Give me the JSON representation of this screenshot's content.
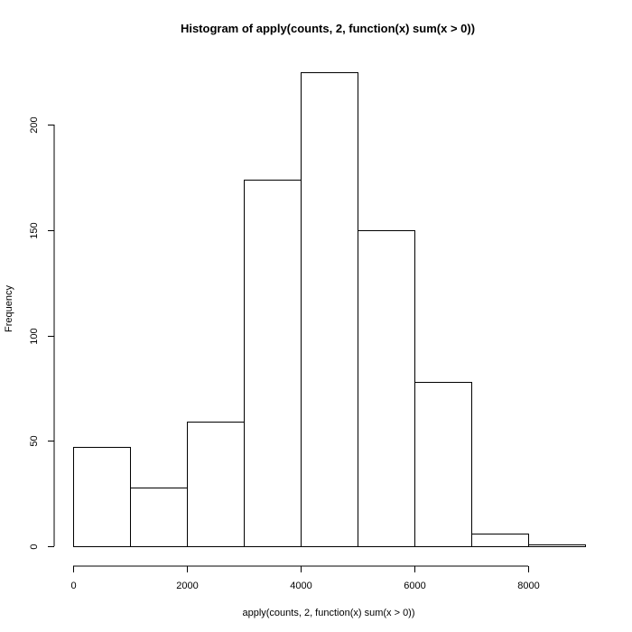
{
  "chart_data": {
    "type": "bar",
    "title": "Histogram of apply(counts, 2, function(x) sum(x > 0))",
    "xlabel": "apply(counts, 2, function(x) sum(x > 0))",
    "ylabel": "Frequency",
    "bins": [
      {
        "start": 0,
        "end": 1000,
        "value": 47
      },
      {
        "start": 1000,
        "end": 2000,
        "value": 28
      },
      {
        "start": 2000,
        "end": 3000,
        "value": 59
      },
      {
        "start": 3000,
        "end": 4000,
        "value": 174
      },
      {
        "start": 4000,
        "end": 5000,
        "value": 225
      },
      {
        "start": 5000,
        "end": 6000,
        "value": 150
      },
      {
        "start": 6000,
        "end": 7000,
        "value": 78
      },
      {
        "start": 7000,
        "end": 8000,
        "value": 6
      },
      {
        "start": 8000,
        "end": 9000,
        "value": 1
      }
    ],
    "xlim": [
      0,
      9000
    ],
    "ylim": [
      0,
      225
    ],
    "xticks": [
      0,
      2000,
      4000,
      6000,
      8000
    ],
    "yticks": [
      0,
      50,
      100,
      150,
      200
    ],
    "grid": false,
    "bar_fill": "#ffffff",
    "bar_stroke": "#000000"
  }
}
